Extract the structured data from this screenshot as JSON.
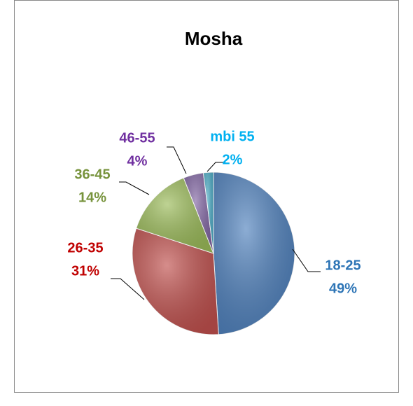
{
  "chart_data": {
    "type": "pie",
    "title": "Mosha",
    "categories": [
      "18-25",
      "26-35",
      "36-45",
      "46-55",
      "mbi 55"
    ],
    "values": [
      49,
      31,
      14,
      4,
      2
    ],
    "value_labels": [
      "49%",
      "31%",
      "14%",
      "4%",
      "2%"
    ],
    "colors": [
      "#4f81bd",
      "#c0504d",
      "#9bbb59",
      "#8064a2",
      "#4bacc6"
    ],
    "label_colors": [
      "#2e75b6",
      "#c00000",
      "#77933c",
      "#7030a0",
      "#00b0f0"
    ]
  }
}
